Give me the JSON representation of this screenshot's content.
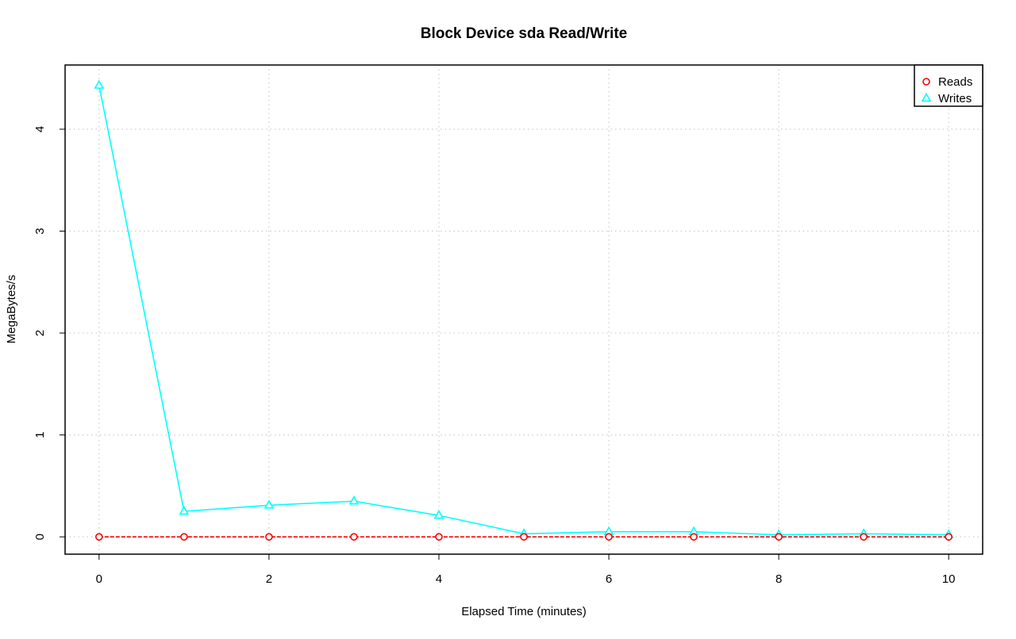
{
  "chart_data": {
    "type": "line",
    "title": "Block Device sda Read/Write",
    "xlabel": "Elapsed Time (minutes)",
    "ylabel": "MegaBytes/s",
    "xlim": [
      -0.4,
      10.4
    ],
    "ylim": [
      -0.17,
      4.63
    ],
    "xticks": [
      0,
      2,
      4,
      6,
      8,
      10
    ],
    "yticks": [
      0,
      1,
      2,
      3,
      4
    ],
    "grid": true,
    "legend_position": "top-right",
    "x": [
      0,
      1,
      2,
      3,
      4,
      5,
      6,
      7,
      8,
      9,
      10
    ],
    "series": [
      {
        "name": "Reads",
        "color": "#ff0000",
        "marker": "circle",
        "line_style": "dashed",
        "values": [
          0,
          0,
          0,
          0,
          0,
          0,
          0,
          0,
          0,
          0,
          0
        ]
      },
      {
        "name": "Writes",
        "color": "#00ffff",
        "marker": "triangle",
        "line_style": "solid",
        "values": [
          4.43,
          0.25,
          0.31,
          0.35,
          0.21,
          0.03,
          0.05,
          0.05,
          0.02,
          0.03,
          0.02
        ]
      }
    ]
  }
}
